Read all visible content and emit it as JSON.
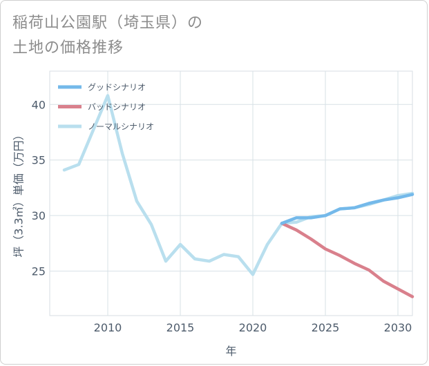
{
  "title_line1": "稲荷山公園駅（埼玉県）の",
  "title_line2": "土地の価格推移",
  "chart_data": {
    "type": "line",
    "xlabel": "年",
    "ylabel": "坪（3.3㎡）単価（万円）",
    "xlim": [
      2006,
      2031
    ],
    "ylim": [
      21,
      43
    ],
    "x_ticks": [
      2010,
      2015,
      2020,
      2025,
      2030
    ],
    "y_ticks": [
      25,
      30,
      35,
      40
    ],
    "grid": true,
    "legend_position": "top-left",
    "series": [
      {
        "name": "グッドシナリオ",
        "color": "#74b9ea",
        "x": [
          2022,
          2023,
          2024,
          2025,
          2026,
          2027,
          2028,
          2029,
          2030,
          2031
        ],
        "y": [
          29.3,
          29.8,
          29.8,
          30.0,
          30.6,
          30.7,
          31.1,
          31.4,
          31.6,
          31.9
        ]
      },
      {
        "name": "バッドシナリオ",
        "color": "#d9808c",
        "x": [
          2022,
          2023,
          2024,
          2025,
          2026,
          2027,
          2028,
          2029,
          2030,
          2031
        ],
        "y": [
          29.3,
          28.7,
          27.9,
          27.0,
          26.4,
          25.7,
          25.1,
          24.1,
          23.4,
          22.7
        ]
      },
      {
        "name": "ノーマルシナリオ",
        "color": "#b9dfee",
        "x": [
          2007,
          2008,
          2009,
          2010,
          2011,
          2012,
          2013,
          2014,
          2015,
          2016,
          2017,
          2018,
          2019,
          2020,
          2021,
          2022,
          2023,
          2024,
          2025,
          2026,
          2027,
          2028,
          2029,
          2030,
          2031
        ],
        "y": [
          34.1,
          34.6,
          37.7,
          40.8,
          35.6,
          31.3,
          29.2,
          25.9,
          27.4,
          26.1,
          25.9,
          26.5,
          26.3,
          24.7,
          27.4,
          29.3,
          29.4,
          29.9,
          30.0,
          30.6,
          30.7,
          31.0,
          31.4,
          31.8,
          32.0
        ]
      }
    ]
  }
}
